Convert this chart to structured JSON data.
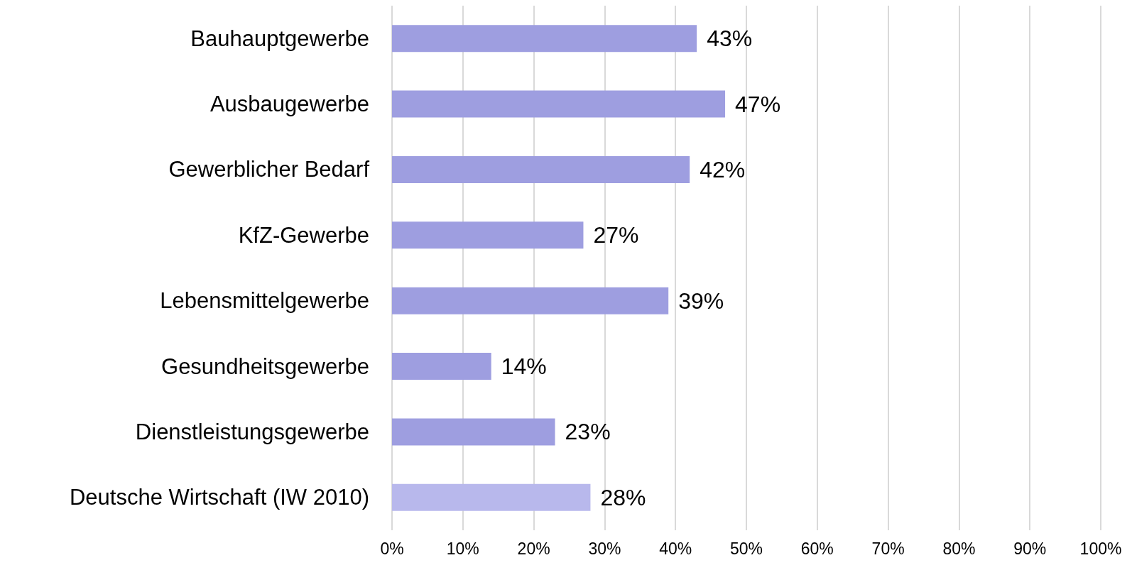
{
  "chart_data": {
    "type": "bar",
    "orientation": "horizontal",
    "categories": [
      "Bauhauptgewerbe",
      "Ausbaugewerbe",
      "Gewerblicher Bedarf",
      "KfZ-Gewerbe",
      "Lebensmittelgewerbe",
      "Gesundheitsgewerbe",
      "Dienstleistungsgewerbe",
      "Deutsche Wirtschaft (IW 2010)"
    ],
    "values": [
      43,
      47,
      42,
      27,
      39,
      14,
      23,
      28
    ],
    "value_labels": [
      "43%",
      "47%",
      "42%",
      "27%",
      "39%",
      "14%",
      "23%",
      "28%"
    ],
    "colors": [
      "#9e9ee0",
      "#9e9ee0",
      "#9e9ee0",
      "#9e9ee0",
      "#9e9ee0",
      "#9e9ee0",
      "#9e9ee0",
      "#b8b8ec"
    ],
    "xlim": [
      0,
      100
    ],
    "xticks": [
      {
        "value": 0,
        "label": "0%"
      },
      {
        "value": 10,
        "label": "10%"
      },
      {
        "value": 20,
        "label": "20%"
      },
      {
        "value": 30,
        "label": "30%"
      },
      {
        "value": 40,
        "label": "40%"
      },
      {
        "value": 50,
        "label": "50%"
      },
      {
        "value": 60,
        "label": "60%"
      },
      {
        "value": 70,
        "label": "70%"
      },
      {
        "value": 80,
        "label": "80%"
      },
      {
        "value": 90,
        "label": "90%"
      },
      {
        "value": 100,
        "label": "100%"
      }
    ],
    "grid": "x"
  }
}
